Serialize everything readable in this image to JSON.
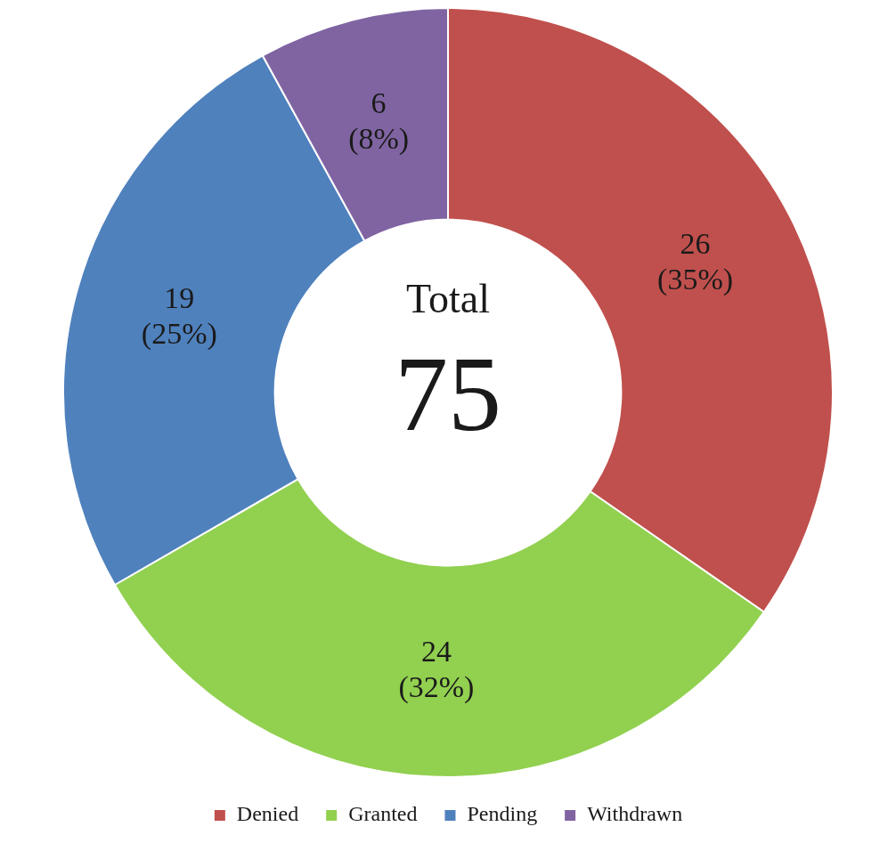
{
  "chart_data": {
    "type": "donut",
    "categories": [
      "Denied",
      "Granted",
      "Pending",
      "Withdrawn"
    ],
    "values": [
      26,
      24,
      19,
      6
    ],
    "colors": [
      "#c0504d",
      "#92d050",
      "#4f81bd",
      "#8064a2"
    ],
    "value_labels": [
      "26 (35%)",
      "24 (32%)",
      "19 (25%)",
      "6 (8%)"
    ],
    "annotations": [
      "Total",
      "75"
    ],
    "legend": "bottom"
  }
}
